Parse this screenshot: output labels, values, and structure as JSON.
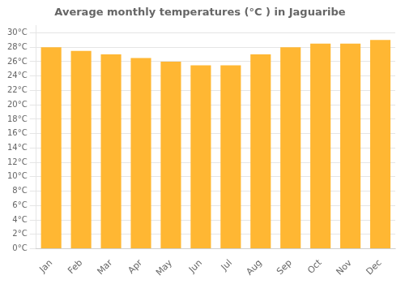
{
  "chart_data": {
    "type": "bar",
    "title": "Average monthly temperatures (°C ) in Jaguaribe",
    "categories": [
      "Jan",
      "Feb",
      "Mar",
      "Apr",
      "May",
      "Jun",
      "Jul",
      "Aug",
      "Sep",
      "Oct",
      "Nov",
      "Dec"
    ],
    "values": [
      28.0,
      27.5,
      27.0,
      26.5,
      26.0,
      25.5,
      25.5,
      27.0,
      28.0,
      28.5,
      28.5,
      29.0
    ],
    "color": "#FFB733",
    "ylim": [
      0,
      31
    ],
    "yticks": [
      {
        "value": 0,
        "label": "0°C"
      },
      {
        "value": 2,
        "label": "2°C"
      },
      {
        "value": 4,
        "label": "4°C"
      },
      {
        "value": 6,
        "label": "6°C"
      },
      {
        "value": 8,
        "label": "8°C"
      },
      {
        "value": 10,
        "label": "10°C"
      },
      {
        "value": 12,
        "label": "12°C"
      },
      {
        "value": 14,
        "label": "14°C"
      },
      {
        "value": 16,
        "label": "16°C"
      },
      {
        "value": 18,
        "label": "18°C"
      },
      {
        "value": 20,
        "label": "20°C"
      },
      {
        "value": 22,
        "label": "22°C"
      },
      {
        "value": 24,
        "label": "24°C"
      },
      {
        "value": 26,
        "label": "26°C"
      },
      {
        "value": 28,
        "label": "28°C"
      },
      {
        "value": 30,
        "label": "30°C"
      }
    ],
    "grid": true
  }
}
